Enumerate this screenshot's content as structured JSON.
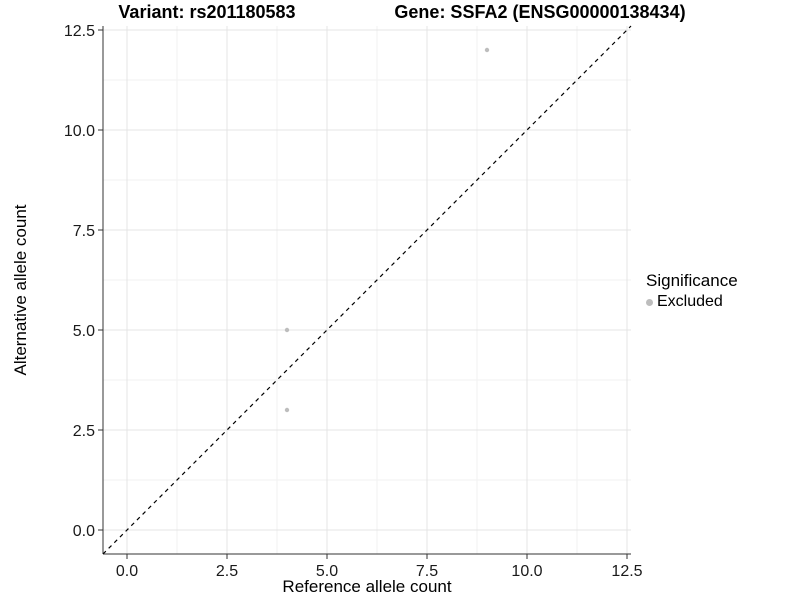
{
  "chart_data": {
    "type": "scatter",
    "title_left": "Variant: rs201180583",
    "title_right": "Gene: SSFA2 (ENSG00000138434)",
    "xlabel": "Reference allele count",
    "ylabel": "Alternative allele count",
    "xlim": [
      -0.6,
      12.6
    ],
    "ylim": [
      -0.6,
      12.6
    ],
    "grid": true,
    "x_ticks": {
      "values": [
        0,
        2.5,
        5,
        7.5,
        10,
        12.5
      ],
      "labels": [
        "0.0",
        "2.5",
        "5.0",
        "7.5",
        "10.0",
        "12.5"
      ]
    },
    "y_ticks": {
      "values": [
        0,
        2.5,
        5,
        7.5,
        10,
        12.5
      ],
      "labels": [
        "0.0",
        "2.5",
        "5.0",
        "7.5",
        "10.0",
        "12.5"
      ]
    },
    "x_minor": [
      1.25,
      3.75,
      6.25,
      8.75,
      11.25
    ],
    "y_minor": [
      1.25,
      3.75,
      6.25,
      8.75,
      11.25
    ],
    "series": [
      {
        "name": "Excluded",
        "color": "#bdbdbd",
        "points": [
          {
            "x": 4,
            "y": 3
          },
          {
            "x": 4,
            "y": 5
          },
          {
            "x": 9,
            "y": 12
          }
        ]
      }
    ],
    "identity_line": {
      "slope": 1,
      "intercept": 0,
      "style": "dashed",
      "color": "#000000"
    },
    "legend": {
      "title": "Significance",
      "position": "right",
      "items": [
        {
          "label": "Excluded",
          "color": "#bdbdbd"
        }
      ]
    },
    "colors": {
      "background": "#ffffff",
      "axis": "#333333",
      "grid_major": "#e4e4e4",
      "grid_minor": "#f2f2f2",
      "title": "#000000",
      "tick_text": "#1a1a1a"
    }
  }
}
